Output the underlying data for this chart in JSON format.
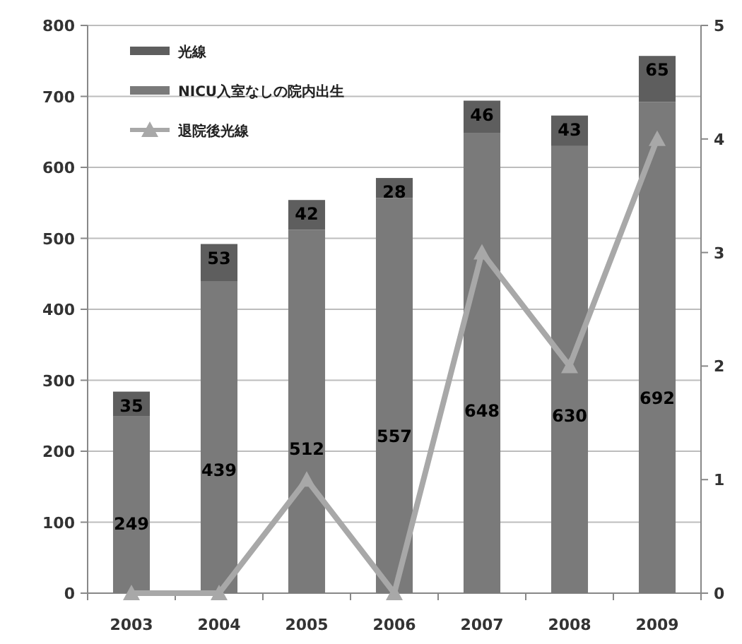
{
  "chart_data": {
    "type": "bar",
    "stacked": true,
    "categories": [
      "2003",
      "2004",
      "2005",
      "2006",
      "2007",
      "2008",
      "2009"
    ],
    "series": [
      {
        "name": "NICU入室なしの院内出生",
        "color": "#7a7a7a",
        "values": [
          249,
          439,
          512,
          557,
          648,
          630,
          692
        ],
        "value_labels": [
          "249",
          "439",
          "512",
          "557",
          "648",
          "630",
          "692"
        ]
      },
      {
        "name": "光線",
        "color": "#5e5e5e",
        "values": [
          35,
          53,
          42,
          28,
          46,
          43,
          65
        ],
        "value_labels": [
          "35",
          "53",
          "42",
          "28",
          "46",
          "43",
          "65"
        ]
      },
      {
        "name": "退院後光線",
        "type": "line",
        "axis": "y2",
        "marker": "triangle",
        "color": "#a8a8a8",
        "values": [
          0,
          0,
          1,
          0,
          3,
          2,
          4
        ]
      }
    ],
    "ylim": [
      0,
      800
    ],
    "yticks": [
      0,
      100,
      200,
      300,
      400,
      500,
      600,
      700,
      800
    ],
    "y2lim": [
      0,
      5
    ],
    "y2ticks": [
      0,
      1,
      2,
      3,
      4,
      5
    ],
    "grid": "y",
    "legend": "top left"
  }
}
